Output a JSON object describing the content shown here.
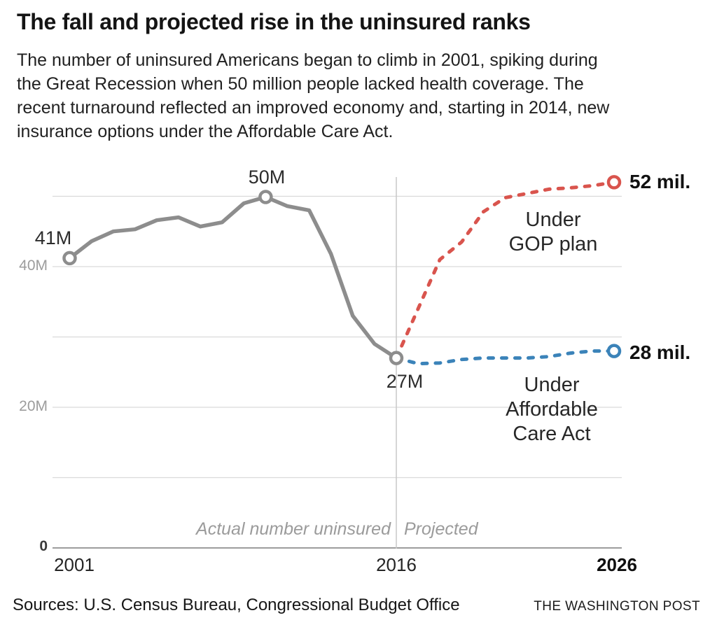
{
  "header": {
    "title": "The fall and projected rise in the uninsured ranks",
    "subtitle_lines": [
      "The number of uninsured Americans began to climb in 2001, spiking during",
      "the Great Recession when 50 million people lacked health coverage. The",
      "recent turnaround reflected an improved economy and, starting in 2014, new",
      "insurance options under the Affordable Care Act."
    ]
  },
  "footer": {
    "sources": "Sources: U.S. Census Bureau, Congressional Budget Office",
    "credit": "THE WASHINGTON POST"
  },
  "chart_data": {
    "type": "line",
    "title": "The fall and projected rise in the uninsured ranks",
    "unit": "millions of uninsured people",
    "x_range": [
      2001,
      2026
    ],
    "ylim": [
      0,
      52
    ],
    "grid": true,
    "legend_position": "inline-annotations",
    "y_axis": {
      "gridline_values": [
        0,
        10,
        20,
        30,
        40,
        50
      ],
      "ticks": [
        {
          "label": "40M",
          "value": 40,
          "bold": false
        },
        {
          "label": "20M",
          "value": 20,
          "bold": false
        },
        {
          "label": "0",
          "value": 0,
          "bold": true
        }
      ]
    },
    "x_axis": {
      "ticks": [
        {
          "label": "2001",
          "year": 2001,
          "bold": false
        },
        {
          "label": "2016",
          "year": 2016,
          "bold": false
        },
        {
          "label": "2026",
          "year": 2026,
          "bold": true
        }
      ],
      "projection_divider_year": 2016
    },
    "series": [
      {
        "name": "Actual number uninsured",
        "color": "#8d8d8d",
        "dashed": false,
        "points": [
          [
            2001,
            41.2
          ],
          [
            2002,
            43.6
          ],
          [
            2003,
            45.0
          ],
          [
            2004,
            45.3
          ],
          [
            2005,
            46.6
          ],
          [
            2006,
            47.0
          ],
          [
            2007,
            45.7
          ],
          [
            2008,
            46.3
          ],
          [
            2009,
            49.0
          ],
          [
            2010,
            49.9
          ],
          [
            2011,
            48.6
          ],
          [
            2012,
            48.0
          ],
          [
            2013,
            41.8
          ],
          [
            2014,
            33.0
          ],
          [
            2015,
            29.0
          ],
          [
            2016,
            27.0
          ]
        ]
      },
      {
        "name": "Under GOP plan",
        "color": "#d9544d",
        "dashed": true,
        "points": [
          [
            2016,
            27.0
          ],
          [
            2017,
            34.0
          ],
          [
            2018,
            41.0
          ],
          [
            2019,
            43.5
          ],
          [
            2020,
            47.8
          ],
          [
            2021,
            49.8
          ],
          [
            2022,
            50.4
          ],
          [
            2023,
            51.0
          ],
          [
            2024,
            51.2
          ],
          [
            2025,
            51.5
          ],
          [
            2026,
            52.0
          ]
        ]
      },
      {
        "name": "Under Affordable Care Act",
        "color": "#3b83b9",
        "dashed": true,
        "points": [
          [
            2016,
            27.0
          ],
          [
            2017,
            26.2
          ],
          [
            2018,
            26.3
          ],
          [
            2019,
            26.8
          ],
          [
            2020,
            27.0
          ],
          [
            2021,
            27.0
          ],
          [
            2022,
            27.0
          ],
          [
            2023,
            27.2
          ],
          [
            2024,
            27.7
          ],
          [
            2025,
            28.0
          ],
          [
            2026,
            28.0
          ]
        ]
      }
    ],
    "markers": [
      {
        "year": 2001,
        "value": 41.2,
        "color": "#8d8d8d",
        "label": "41M"
      },
      {
        "year": 2010,
        "value": 49.9,
        "color": "#8d8d8d",
        "label": "50M"
      },
      {
        "year": 2016,
        "value": 27.0,
        "color": "#8d8d8d",
        "label": "27M"
      },
      {
        "year": 2026,
        "value": 52.0,
        "color": "#d9544d",
        "label": "52 mil."
      },
      {
        "year": 2026,
        "value": 28.0,
        "color": "#3b83b9",
        "label": "28 mil."
      }
    ],
    "annotations": {
      "start_label": "41M",
      "peak_label": "50M",
      "trough_label": "27M",
      "gop_end_label": "52 mil.",
      "aca_end_label": "28 mil.",
      "gop_lines": [
        "Under",
        "GOP plan"
      ],
      "aca_lines": [
        "Under",
        "Affordable",
        "Care Act"
      ],
      "actual_region_label": "Actual number uninsured",
      "projected_region_label": "Projected"
    },
    "colors": {
      "actual_line": "#8d8d8d",
      "gop_line": "#d9544d",
      "aca_line": "#3b83b9",
      "gridline": "#dadada",
      "baseline": "#9d9d9d",
      "divider": "#c8c8c8"
    }
  }
}
